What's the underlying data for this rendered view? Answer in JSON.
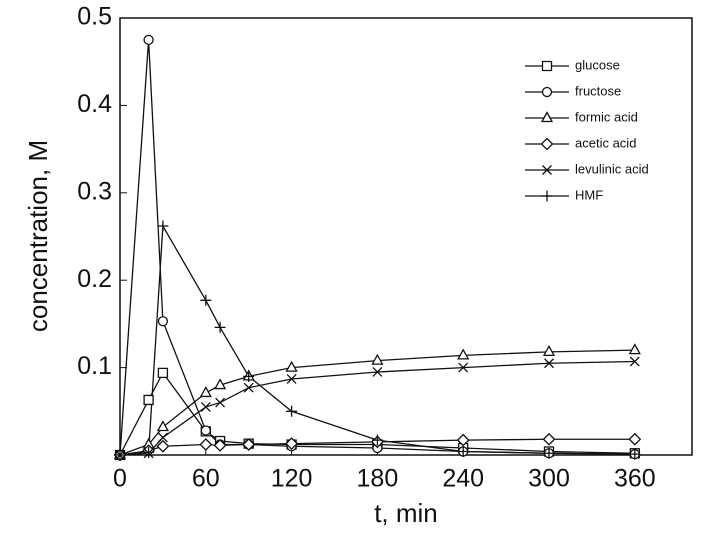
{
  "chart_data": {
    "type": "line",
    "xlabel": "t, min",
    "ylabel": "concentration, M",
    "xlim": [
      0,
      400
    ],
    "ylim": [
      0,
      0.5
    ],
    "xticks": [
      0,
      60,
      120,
      180,
      240,
      300,
      360
    ],
    "yticks": [
      0.1,
      0.2,
      0.3,
      0.4,
      0.5
    ],
    "legend": "upper right",
    "series": [
      {
        "name": "glucose",
        "color": "#111111",
        "marker": "square",
        "x": [
          0,
          20,
          30,
          60,
          70,
          90,
          120,
          180,
          240,
          300,
          360
        ],
        "values": [
          0,
          0.063,
          0.094,
          0.027,
          0.016,
          0.013,
          0.012,
          0.012,
          0.008,
          0.004,
          0.002
        ]
      },
      {
        "name": "fructose",
        "color": "#111111",
        "marker": "circle",
        "x": [
          0,
          20,
          30,
          60,
          70,
          90,
          120,
          180,
          240,
          300,
          360
        ],
        "values": [
          0,
          0.475,
          0.153,
          0.028,
          0.012,
          0.012,
          0.01,
          0.008,
          0.004,
          0.002,
          0.001
        ]
      },
      {
        "name": "formic acid",
        "color": "#111111",
        "marker": "triangle",
        "x": [
          0,
          20,
          30,
          60,
          70,
          90,
          120,
          180,
          240,
          300,
          360
        ],
        "values": [
          0,
          0.012,
          0.032,
          0.071,
          0.08,
          0.09,
          0.1,
          0.108,
          0.114,
          0.118,
          0.12
        ]
      },
      {
        "name": "acetic acid",
        "color": "#111111",
        "marker": "diamond",
        "x": [
          0,
          20,
          30,
          60,
          70,
          90,
          120,
          180,
          240,
          300,
          360
        ],
        "values": [
          0,
          0.005,
          0.01,
          0.012,
          0.011,
          0.012,
          0.013,
          0.015,
          0.017,
          0.018,
          0.018
        ]
      },
      {
        "name": "levulinic acid",
        "color": "#111111",
        "marker": "x",
        "x": [
          0,
          20,
          30,
          60,
          70,
          90,
          120,
          180,
          240,
          300,
          360
        ],
        "values": [
          0,
          0.002,
          0.02,
          0.055,
          0.06,
          0.077,
          0.087,
          0.095,
          0.1,
          0.105,
          0.107
        ]
      },
      {
        "name": "HMF",
        "color": "#111111",
        "marker": "plus",
        "x": [
          0,
          20,
          30,
          60,
          70,
          90,
          120,
          180,
          240,
          300,
          360
        ],
        "values": [
          0,
          0.003,
          0.262,
          0.177,
          0.146,
          0.09,
          0.05,
          0.017,
          0.004,
          0.002,
          0.001
        ]
      }
    ]
  }
}
